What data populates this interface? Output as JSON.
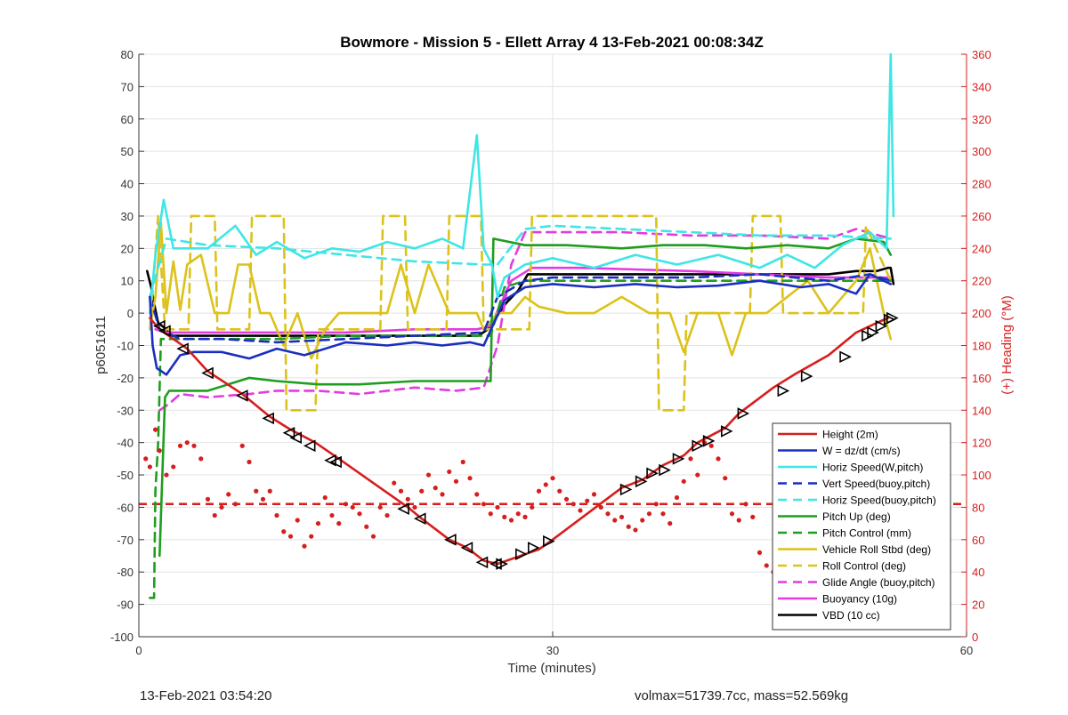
{
  "chart_data": {
    "type": "line",
    "title": "Bowmore - Mission 5 - Ellett Array 4 13-Feb-2021 00:08:34Z",
    "xlabel": "Time (minutes)",
    "ylabel": "p6051611",
    "y2label": "(+) Heading (°M)",
    "xlim": [
      0,
      60
    ],
    "ylim": [
      -100,
      80
    ],
    "y2lim": [
      0,
      360
    ],
    "xticks": [
      0,
      30,
      60
    ],
    "yticks": [
      80,
      70,
      60,
      50,
      40,
      30,
      20,
      10,
      0,
      -10,
      -20,
      -30,
      -40,
      -50,
      -60,
      -70,
      -80,
      -90,
      -100
    ],
    "y2ticks": [
      360,
      340,
      320,
      300,
      280,
      260,
      240,
      220,
      200,
      180,
      160,
      140,
      120,
      100,
      80,
      60,
      40,
      20,
      0
    ],
    "grid": true,
    "legend_position": "lower-right",
    "colors": {
      "red": "#d61e1e",
      "blue": "#1a2fbf",
      "cyan": "#3ee6e6",
      "green": "#1e9e1e",
      "yellow": "#dcc21a",
      "magenta": "#e23be2",
      "black": "#000000",
      "axis_right": "#d61e1e"
    },
    "series": [
      {
        "name": "Height (2m)",
        "color": "#d61e1e",
        "style": "solid",
        "x": [
          0.8,
          1.5,
          3.5,
          5,
          7.5,
          9.5,
          11,
          12.8,
          14.5,
          19.5,
          20.5,
          22.5,
          23.8,
          25,
          26,
          28,
          29,
          30,
          35,
          36.5,
          38,
          39.5,
          40.5,
          42.5,
          43.5,
          46,
          47.5,
          50,
          52,
          53.5,
          54.3
        ],
        "y": [
          -1.5,
          -5,
          -11,
          -18,
          -25,
          -32,
          -36,
          -40,
          -45,
          -60,
          -63.5,
          -70,
          -72.5,
          -76.5,
          -77.5,
          -74.5,
          -73,
          -70,
          -54,
          -51.5,
          -47,
          -44,
          -40,
          -35.5,
          -31,
          -23,
          -19,
          -13,
          -6,
          -3,
          -1.5
        ]
      },
      {
        "name": "W = dz/dt (cm/s)",
        "color": "#1a2fbf",
        "style": "solid",
        "x": [
          0.8,
          1.0,
          1.3,
          2,
          3,
          4,
          6,
          8,
          10,
          12,
          15,
          18,
          20,
          22,
          24,
          25,
          26.5,
          28,
          30,
          33,
          36,
          39,
          42,
          45,
          48,
          50,
          52,
          53,
          54.5
        ],
        "y": [
          5,
          -10,
          -17,
          -19,
          -13,
          -12,
          -12,
          -14,
          -11,
          -13,
          -9,
          -10,
          -9,
          -10,
          -9,
          -10,
          4,
          8,
          9,
          8,
          9,
          8,
          8.5,
          10,
          8,
          9,
          6,
          12,
          9
        ]
      },
      {
        "name": "Horiz Speed(W,pitch)",
        "color": "#3ee6e6",
        "style": "solid",
        "x": [
          0.8,
          1.2,
          1.8,
          2.5,
          3,
          5,
          7,
          8.5,
          10,
          12,
          14,
          16,
          18,
          20,
          22,
          23.5,
          24.5,
          25,
          25.6,
          26,
          26.5,
          28,
          30,
          33,
          36,
          39,
          42,
          45,
          47,
          49,
          51,
          53,
          54.2,
          54.5,
          54.7
        ],
        "y": [
          0,
          18,
          35,
          20,
          20,
          20,
          27,
          18,
          22,
          17,
          20,
          19,
          22,
          20,
          23,
          20,
          55,
          20,
          15,
          5,
          11,
          15,
          17,
          14,
          18,
          15,
          18,
          14,
          18,
          14,
          21,
          25,
          20,
          80,
          30
        ]
      },
      {
        "name": "Vert Speed(buoy,pitch)",
        "color": "#1a2fbf",
        "style": "dashed",
        "x": [
          0.8,
          1.5,
          3,
          6,
          10,
          15,
          20,
          25,
          26,
          28,
          30,
          35,
          40,
          45,
          50,
          53,
          54.5
        ],
        "y": [
          5,
          -5,
          -8,
          -8,
          -9,
          -8,
          -7,
          -6,
          5,
          10,
          11,
          11,
          11,
          12,
          10,
          12,
          10
        ]
      },
      {
        "name": "Horiz Speed(buoy,pitch)",
        "color": "#3ee6e6",
        "style": "dashed",
        "x": [
          0.8,
          2,
          5,
          10,
          15,
          20,
          25,
          26,
          28,
          30,
          35,
          40,
          45,
          50,
          54.5
        ],
        "y": [
          5,
          23,
          21,
          20,
          18,
          16,
          15,
          15,
          26,
          27,
          26,
          25,
          24,
          24,
          23
        ]
      },
      {
        "name": "Pitch Up (deg)",
        "color": "#1e9e1e",
        "style": "solid",
        "x": [
          1.5,
          1.9,
          2.2,
          3,
          5,
          8,
          10,
          13,
          16,
          20,
          23,
          24.8,
          25.5,
          25.7,
          28,
          31,
          35,
          38,
          41,
          44,
          47,
          50,
          52,
          54,
          54.5
        ],
        "y": [
          -75,
          -26,
          -24,
          -24,
          -24,
          -20,
          -21,
          -22,
          -22,
          -21,
          -21,
          -21,
          -21,
          23,
          21,
          21,
          20,
          21,
          21,
          20,
          21,
          20,
          23,
          22,
          18
        ]
      },
      {
        "name": "Pitch Control (mm)",
        "color": "#1e9e1e",
        "style": "dashed",
        "x": [
          0.8,
          1.1,
          1.2,
          1.4,
          1.6,
          2.5,
          5,
          10,
          15,
          20,
          25,
          25.5,
          26.5,
          28,
          35,
          45,
          54.5
        ],
        "y": [
          -88,
          -88,
          -55,
          -40,
          -8,
          -8,
          -8,
          -8,
          -7,
          -7,
          -7,
          -7,
          8,
          10,
          10,
          10,
          10
        ]
      },
      {
        "name": "Vehicle Roll Stbd (deg)",
        "color": "#dcc21a",
        "style": "solid",
        "x": [
          0.8,
          1.2,
          1.6,
          2.0,
          2.5,
          3,
          3.5,
          4.5,
          5.5,
          6.5,
          7.2,
          8,
          8.8,
          9.5,
          10.5,
          11.5,
          12.5,
          13.5,
          14.5,
          16,
          18,
          19,
          20,
          21,
          22.5,
          23.5,
          24.5,
          25,
          26,
          27,
          28,
          29,
          31,
          33,
          35,
          37,
          38.5,
          39.5,
          40.5,
          42,
          43,
          44,
          45.5,
          47,
          48.5,
          50,
          52,
          53,
          54,
          54.5
        ],
        "y": [
          -5,
          5,
          28,
          0,
          16,
          1,
          15,
          18,
          0,
          0,
          15,
          15,
          0,
          0,
          -10,
          0,
          -14,
          -5,
          0,
          0,
          0,
          15,
          0,
          15,
          0,
          0,
          0,
          -5,
          0,
          0,
          5,
          2,
          0,
          0,
          5,
          0,
          0,
          -12,
          0,
          0,
          -13,
          0,
          0,
          5,
          10,
          0,
          10,
          20,
          0,
          -8
        ]
      },
      {
        "name": "Roll Control (deg)",
        "color": "#dcc21a",
        "style": "dashed",
        "x": [
          0.8,
          1.4,
          1.9,
          2.3,
          3.6,
          3.8,
          5.5,
          5.7,
          8,
          8.2,
          10.5,
          10.7,
          12.8,
          13.0,
          17.5,
          17.7,
          19.3,
          19.5,
          22.3,
          22.5,
          24.8,
          25.0,
          28.3,
          28.5,
          37.5,
          37.7,
          39.5,
          39.7,
          44.3,
          44.5,
          46.5,
          46.7,
          52.5,
          52.7,
          54.5
        ],
        "y": [
          -5,
          30,
          -5,
          -5,
          -5,
          30,
          30,
          -5,
          -5,
          30,
          30,
          -30,
          -30,
          -5,
          -5,
          30,
          30,
          -5,
          -5,
          30,
          30,
          -5,
          -5,
          30,
          30,
          -30,
          -30,
          0,
          0,
          30,
          30,
          0,
          0,
          27,
          10
        ]
      },
      {
        "name": "Glide Angle (buoy,pitch)",
        "color": "#e23be2",
        "style": "dashed",
        "x": [
          1.5,
          2.2,
          3,
          5,
          8,
          10,
          13,
          16,
          20,
          23,
          25,
          26,
          27,
          28,
          30,
          35,
          40,
          45,
          50,
          52,
          54.5
        ],
        "y": [
          -30,
          -28,
          -25,
          -26,
          -25,
          -24,
          -24,
          -25,
          -23,
          -24,
          -23,
          -10,
          15,
          25,
          25,
          25,
          24,
          24,
          23,
          26,
          23
        ]
      },
      {
        "name": "Buoyancy (10g)",
        "color": "#e23be2",
        "style": "solid",
        "x": [
          1.2,
          2,
          5,
          10,
          15,
          20,
          24.5,
          25.5,
          27,
          28.5,
          32,
          36,
          40,
          45,
          50,
          54.5
        ],
        "y": [
          -5,
          -6,
          -6,
          -6,
          -6,
          -5,
          -5,
          -4,
          10,
          14,
          14,
          13.5,
          13,
          12,
          11,
          11
        ]
      },
      {
        "name": "VBD (10 cc)",
        "color": "#000000",
        "style": "solid",
        "x": [
          0.6,
          0.9,
          1.1,
          1.4,
          2,
          2.3,
          5,
          10,
          15,
          20,
          24.6,
          25.3,
          26.6,
          27.5,
          28.2,
          32,
          36,
          40,
          45,
          50,
          52,
          53,
          53.5,
          54.3,
          54.5,
          54.7
        ],
        "y": [
          13,
          8,
          3,
          -3,
          -5,
          -7,
          -7,
          -7,
          -7,
          -7,
          -7,
          -5,
          3,
          7,
          12,
          12,
          12,
          12,
          12,
          12,
          13,
          13,
          13,
          14,
          14,
          9
        ]
      }
    ],
    "height_markers": [
      {
        "x": 1.5,
        "y": -4,
        "dir": "left"
      },
      {
        "x": 1.9,
        "y": -5.5,
        "dir": "left"
      },
      {
        "x": 3.2,
        "y": -11,
        "dir": "left"
      },
      {
        "x": 5,
        "y": -18.5,
        "dir": "left"
      },
      {
        "x": 7.5,
        "y": -25.5,
        "dir": "left"
      },
      {
        "x": 9.4,
        "y": -32.5,
        "dir": "left"
      },
      {
        "x": 10.9,
        "y": -37,
        "dir": "left"
      },
      {
        "x": 11.4,
        "y": -38.5,
        "dir": "left"
      },
      {
        "x": 12.4,
        "y": -41,
        "dir": "left"
      },
      {
        "x": 13.9,
        "y": -45.5,
        "dir": "left"
      },
      {
        "x": 14.3,
        "y": -46,
        "dir": "left"
      },
      {
        "x": 19.2,
        "y": -60.5,
        "dir": "left"
      },
      {
        "x": 20.4,
        "y": -63.5,
        "dir": "left"
      },
      {
        "x": 22.6,
        "y": -70,
        "dir": "left"
      },
      {
        "x": 23.8,
        "y": -72.5,
        "dir": "left"
      },
      {
        "x": 24.9,
        "y": -77,
        "dir": "left"
      },
      {
        "x": 25.9,
        "y": -77.5,
        "dir": "left"
      },
      {
        "x": 26.3,
        "y": -77.5,
        "dir": "right"
      },
      {
        "x": 27.7,
        "y": -74.5,
        "dir": "right"
      },
      {
        "x": 28.6,
        "y": -72.5,
        "dir": "right"
      },
      {
        "x": 29.7,
        "y": -70.5,
        "dir": "right"
      },
      {
        "x": 35.3,
        "y": -54.5,
        "dir": "right"
      },
      {
        "x": 36.4,
        "y": -52,
        "dir": "right"
      },
      {
        "x": 37.2,
        "y": -49.5,
        "dir": "right"
      },
      {
        "x": 38.1,
        "y": -48.5,
        "dir": "right"
      },
      {
        "x": 39.1,
        "y": -45,
        "dir": "right"
      },
      {
        "x": 40.5,
        "y": -41,
        "dir": "right"
      },
      {
        "x": 41.3,
        "y": -39.5,
        "dir": "right"
      },
      {
        "x": 42.6,
        "y": -36.5,
        "dir": "right"
      },
      {
        "x": 43.8,
        "y": -31,
        "dir": "right"
      },
      {
        "x": 46.7,
        "y": -24,
        "dir": "right"
      },
      {
        "x": 48.4,
        "y": -19.5,
        "dir": "right"
      },
      {
        "x": 51.2,
        "y": -13.5,
        "dir": "right"
      },
      {
        "x": 52.8,
        "y": -7,
        "dir": "right"
      },
      {
        "x": 53.2,
        "y": -6,
        "dir": "right"
      },
      {
        "x": 53.8,
        "y": -4,
        "dir": "right"
      },
      {
        "x": 54.4,
        "y": -2,
        "dir": "right"
      },
      {
        "x": 54.6,
        "y": -1.5,
        "dir": "right"
      }
    ],
    "heading": {
      "x": [
        0.5,
        0.8,
        1.2,
        1.5,
        2,
        2.5,
        3,
        3.5,
        4,
        4.5,
        5,
        5.5,
        6,
        6.5,
        7,
        7.5,
        8,
        8.5,
        9,
        9.5,
        10,
        10.5,
        11,
        11.5,
        12,
        12.5,
        13,
        13.5,
        14,
        14.5,
        15,
        15.5,
        16,
        16.5,
        17,
        17.5,
        18,
        18.5,
        19,
        19.5,
        20,
        20.5,
        21,
        21.5,
        22,
        22.5,
        23,
        23.5,
        24,
        24.5,
        25,
        25.5,
        26,
        26.5,
        27,
        27.5,
        28,
        28.5,
        29,
        29.5,
        30,
        30.5,
        31,
        31.5,
        32,
        32.5,
        33,
        33.5,
        34,
        34.5,
        35,
        35.5,
        36,
        36.5,
        37,
        37.5,
        38,
        38.5,
        39,
        39.5,
        40,
        40.5,
        41,
        41.5,
        42,
        42.5,
        43,
        43.5,
        44,
        44.5,
        45,
        45.5,
        46,
        46.5,
        47,
        47.5,
        48,
        48.5,
        49,
        49.5,
        50,
        50.5,
        51,
        51.5,
        52,
        52.5,
        53,
        53.5,
        54
      ],
      "y": [
        110,
        105,
        128,
        115,
        100,
        105,
        118,
        120,
        118,
        110,
        85,
        75,
        80,
        88,
        82,
        118,
        108,
        90,
        85,
        90,
        75,
        65,
        62,
        72,
        56,
        62,
        70,
        86,
        75,
        70,
        82,
        80,
        76,
        68,
        62,
        80,
        75,
        95,
        90,
        85,
        80,
        90,
        100,
        92,
        88,
        102,
        96,
        108,
        98,
        88,
        82,
        76,
        80,
        74,
        72,
        76,
        74,
        80,
        90,
        94,
        98,
        90,
        85,
        82,
        78,
        84,
        88,
        80,
        76,
        72,
        74,
        68,
        66,
        72,
        76,
        82,
        76,
        70,
        86,
        96,
        110,
        100,
        120,
        118,
        110,
        98,
        76,
        72,
        82,
        74,
        52,
        44,
        40,
        56,
        76,
        70,
        64,
        52,
        56,
        64,
        72,
        78,
        92,
        96,
        100,
        88,
        74,
        60,
        52
      ]
    },
    "reference_line": {
      "color": "#d61e1e",
      "y": -59,
      "style": "dashed"
    }
  },
  "footer": {
    "left": "13-Feb-2021 03:54:20",
    "right": "volmax=51739.7cc, mass=52.569kg"
  }
}
